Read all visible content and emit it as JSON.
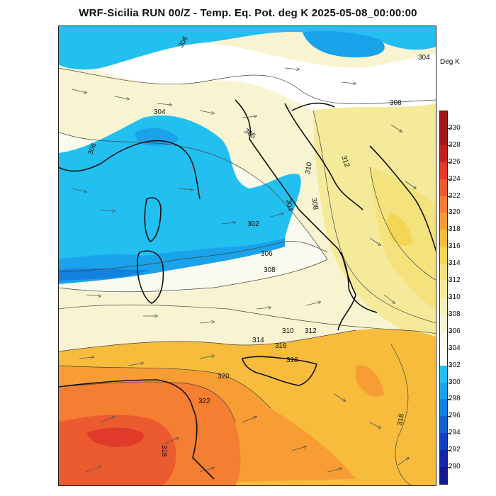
{
  "title": "WRF-Sicilia RUN 00/Z - Temp. Eq. Pot. deg K 2025-05-08_00:00:00",
  "legend": {
    "unit": "Deg K",
    "levels": [
      {
        "value": "330",
        "color": "#a01818"
      },
      {
        "value": "328",
        "color": "#c42020"
      },
      {
        "value": "326",
        "color": "#e03a2a"
      },
      {
        "value": "324",
        "color": "#ec5a30"
      },
      {
        "value": "322",
        "color": "#f47e32"
      },
      {
        "value": "320",
        "color": "#f79d34"
      },
      {
        "value": "318",
        "color": "#f7bc3c"
      },
      {
        "value": "316",
        "color": "#f5d554"
      },
      {
        "value": "314",
        "color": "#f4e37c"
      },
      {
        "value": "312",
        "color": "#f4ea9a"
      },
      {
        "value": "310",
        "color": "#f6efb8"
      },
      {
        "value": "308",
        "color": "#f8f4d2"
      },
      {
        "value": "306",
        "color": "#fbfaee"
      },
      {
        "value": "304",
        "color": "#ffffff"
      },
      {
        "value": "302",
        "color": "#22c0f0"
      },
      {
        "value": "300",
        "color": "#1aa2ea"
      },
      {
        "value": "298",
        "color": "#1480e0"
      },
      {
        "value": "296",
        "color": "#1460d2"
      },
      {
        "value": "294",
        "color": "#1440c0"
      },
      {
        "value": "292",
        "color": "#1426aa"
      },
      {
        "value": "290",
        "color": "#141890"
      }
    ]
  },
  "contour_labels": [
    "306",
    "304",
    "308",
    "304",
    "306",
    "306",
    "310",
    "312",
    "308",
    "304",
    "302",
    "306",
    "308",
    "310",
    "312",
    "314",
    "316",
    "318",
    "320",
    "322",
    "318",
    "318"
  ]
}
